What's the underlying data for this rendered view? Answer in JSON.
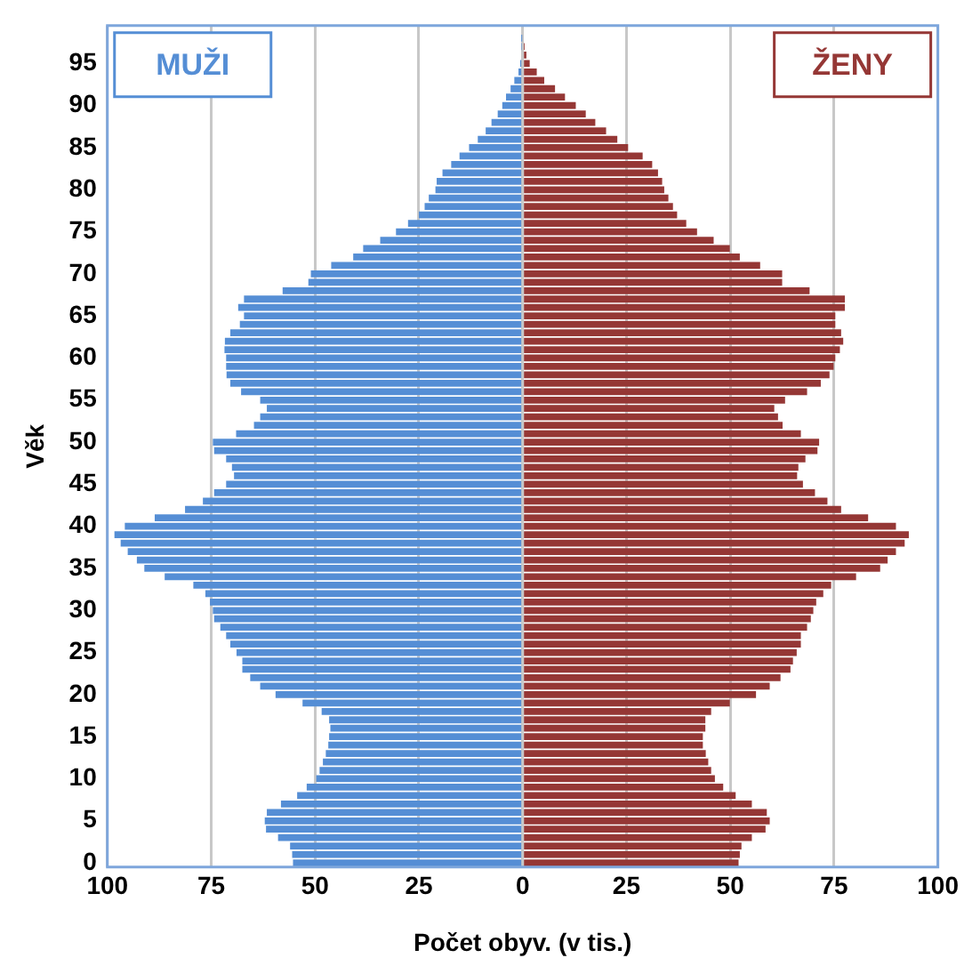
{
  "chart_data": {
    "type": "bar",
    "orientation": "horizontal",
    "stacked": true,
    "xlabel": "Počet obyv. (v tis.)",
    "ylabel": "Věk",
    "categories": [
      null,
      null,
      null,
      null,
      "95",
      null,
      null,
      null,
      null,
      "90",
      null,
      null,
      null,
      null,
      "85",
      null,
      null,
      null,
      null,
      "80",
      null,
      null,
      null,
      null,
      "75",
      null,
      null,
      null,
      null,
      "70",
      null,
      null,
      null,
      null,
      "65",
      null,
      null,
      null,
      null,
      "60",
      null,
      null,
      null,
      null,
      "55",
      null,
      null,
      null,
      null,
      "50",
      null,
      null,
      null,
      null,
      "45",
      null,
      null,
      null,
      null,
      "40",
      null,
      null,
      null,
      null,
      "35",
      null,
      null,
      null,
      null,
      "30",
      null,
      null,
      null,
      null,
      "25",
      null,
      null,
      null,
      null,
      "20",
      null,
      null,
      null,
      null,
      "15",
      null,
      null,
      null,
      null,
      "10",
      null,
      null,
      null,
      null,
      "5",
      null,
      null,
      null,
      null,
      "0"
    ],
    "series": [
      {
        "name": "MUŽI",
        "color": "#558ed5",
        "values": [
          0,
          -0.1,
          -0.2,
          null,
          -0.6,
          -1.0,
          -2.0,
          -2.9,
          -4.0,
          -4.9,
          -6.0,
          -7.5,
          -8.9,
          -10.8,
          -12.9,
          -15.2,
          -17.2,
          -19.3,
          -20.7,
          -21.0,
          -22.6,
          -23.6,
          -25.0,
          -27.6,
          -30.5,
          -34.3,
          -38.4,
          -40.8,
          -46.1,
          -51.0,
          -51.6,
          -57.8,
          -67.1,
          -68.5,
          -67.1,
          -68.1,
          -70.4,
          -71.7,
          -71.8,
          -71.4,
          -71.4,
          -71.3,
          -70.4,
          -67.8,
          -63.2,
          -61.6,
          -63.2,
          -64.7,
          -69.0,
          -74.6,
          -74.3,
          -71.4,
          -70.0,
          -69.5,
          -71.4,
          -74.3,
          -77.0,
          -81.3,
          -88.6,
          -95.8,
          -98.3,
          -96.8,
          -95.1,
          -92.9,
          -91.1,
          -86.2,
          -79.3,
          -76.4,
          -75.3,
          -74.6,
          -74.3,
          -72.8,
          -71.4,
          -70.4,
          -68.9,
          -67.5,
          -67.5,
          -65.6,
          -63.2,
          -59.5,
          -53.0,
          -48.4,
          -46.6,
          -46.3,
          -46.6,
          -46.8,
          -47.4,
          -48.1,
          -48.9,
          -49.7,
          -52.0,
          -54.3,
          -58.2,
          -61.6,
          -62.1,
          -61.8,
          -58.9,
          -56.0,
          -55.5,
          -55.3
        ]
      },
      {
        "name": "ŽENY",
        "color": "#953735",
        "values": [
          null,
          null,
          0.5,
          0.9,
          1.7,
          3.4,
          5.2,
          7.8,
          10.2,
          12.8,
          15.2,
          17.5,
          20.1,
          22.8,
          25.4,
          28.9,
          31.2,
          32.6,
          33.6,
          34.1,
          35.1,
          36.2,
          37.2,
          39.4,
          42.0,
          46.0,
          49.9,
          52.3,
          57.2,
          62.5,
          62.5,
          69.1,
          77.6,
          77.6,
          75.3,
          75.3,
          76.7,
          77.2,
          76.4,
          75.3,
          74.9,
          73.9,
          71.8,
          68.5,
          63.2,
          60.6,
          61.5,
          62.6,
          67.0,
          71.4,
          71.0,
          68.1,
          66.4,
          66.1,
          67.5,
          70.4,
          73.4,
          76.7,
          83.2,
          89.9,
          93.0,
          92.0,
          89.9,
          87.9,
          86.1,
          80.3,
          74.3,
          72.4,
          70.7,
          70.0,
          69.4,
          68.5,
          67.0,
          67.0,
          66.0,
          65.1,
          64.5,
          62.1,
          59.5,
          56.2,
          49.9,
          45.4,
          44.0,
          44.0,
          43.4,
          43.4,
          44.1,
          44.7,
          45.4,
          46.3,
          48.3,
          51.3,
          55.2,
          58.8,
          59.5,
          58.5,
          55.2,
          52.7,
          52.3,
          52.0
        ]
      }
    ],
    "xlim": [
      -100,
      100
    ],
    "xticks": [
      {
        "value": -100,
        "label": "100"
      },
      {
        "value": -75,
        "label": "75"
      },
      {
        "value": -50,
        "label": "50"
      },
      {
        "value": -25,
        "label": "25"
      },
      0,
      25,
      50,
      75,
      100
    ],
    "grid": "x"
  }
}
